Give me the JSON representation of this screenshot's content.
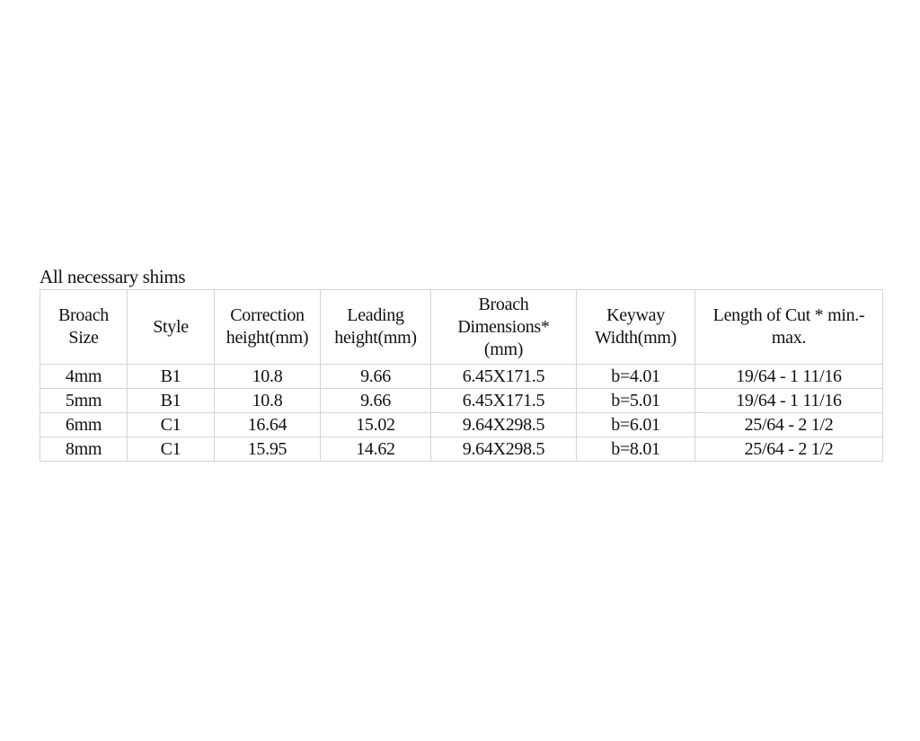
{
  "caption": "All necessary shims",
  "table": {
    "header": [
      [
        "Broach",
        "Size"
      ],
      [
        "Style"
      ],
      [
        "Correction",
        "height(mm)"
      ],
      [
        "Leading",
        "height(mm)"
      ],
      [
        "Broach",
        "Dimensions*",
        "(mm)"
      ],
      [
        "Keyway",
        "Width(mm)"
      ],
      [
        "Length of Cut * min.-",
        "max."
      ]
    ],
    "rows": [
      [
        "4mm",
        "B1",
        "10.8",
        "9.66",
        "6.45X171.5",
        "b=4.01",
        "19/64 - 1 11/16"
      ],
      [
        "5mm",
        "B1",
        "10.8",
        "9.66",
        "6.45X171.5",
        "b=5.01",
        "19/64 - 1 11/16"
      ],
      [
        "6mm",
        "C1",
        "16.64",
        "15.02",
        "9.64X298.5",
        "b=6.01",
        "25/64 - 2 1/2"
      ],
      [
        "8mm",
        "C1",
        "15.95",
        "14.62",
        "9.64X298.5",
        "b=8.01",
        "25/64 - 2 1/2"
      ]
    ]
  }
}
